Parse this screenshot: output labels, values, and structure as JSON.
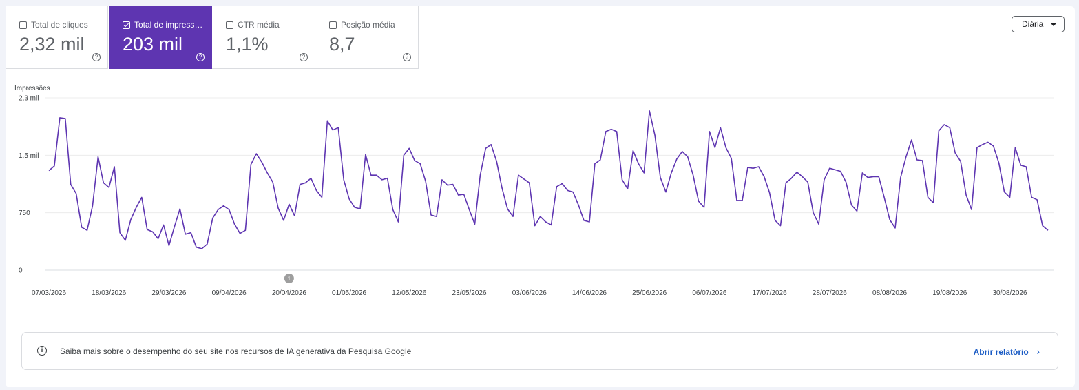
{
  "metrics": [
    {
      "label": "Total de cliques",
      "value": "2,32 mil",
      "active": false
    },
    {
      "label": "Total de impressões",
      "value": "203 mil",
      "active": true
    },
    {
      "label": "CTR média",
      "value": "1,1%",
      "active": false
    },
    {
      "label": "Posição média",
      "value": "8,7",
      "active": false
    }
  ],
  "dropdown": {
    "label": "Diária"
  },
  "banner": {
    "text": "Saiba mais sobre o desempenho do seu site nos recursos de IA generativa da Pesquisa Google",
    "link": "Abrir relatório"
  },
  "colors": {
    "accent": "#5e35b1",
    "line": "#5e35b1",
    "link": "#1a5bc4"
  },
  "chart_data": {
    "type": "line",
    "ylabel": "Impressões",
    "ylim": [
      0,
      2250
    ],
    "yticks": [
      {
        "value": 0,
        "label": "0"
      },
      {
        "value": 750,
        "label": "750"
      },
      {
        "value": 1500,
        "label": "1,5 mil"
      },
      {
        "value": 2250,
        "label": "2,3 mil"
      }
    ],
    "xticks": [
      "07/03/2026",
      "18/03/2026",
      "29/03/2026",
      "09/04/2026",
      "20/04/2026",
      "01/05/2026",
      "12/05/2026",
      "23/05/2026",
      "03/06/2026",
      "14/06/2026",
      "25/06/2026",
      "06/07/2026",
      "17/07/2026",
      "28/07/2026",
      "08/08/2026",
      "19/08/2026",
      "30/08/2026"
    ],
    "start_date": "07/03/2026",
    "annotation": {
      "label": "1",
      "date": "20/04/2026"
    },
    "grid": true,
    "series": [
      {
        "name": "Impressões",
        "values": [
          1300,
          1360,
          1990,
          1980,
          1120,
          1000,
          560,
          520,
          840,
          1480,
          1140,
          1080,
          1350,
          490,
          390,
          660,
          820,
          950,
          530,
          500,
          410,
          590,
          320,
          570,
          800,
          470,
          490,
          300,
          280,
          340,
          680,
          790,
          840,
          790,
          600,
          480,
          520,
          1380,
          1520,
          1410,
          1270,
          1150,
          810,
          650,
          860,
          710,
          1120,
          1140,
          1200,
          1040,
          950,
          1950,
          1830,
          1860,
          1180,
          930,
          820,
          800,
          1510,
          1240,
          1240,
          1180,
          1200,
          790,
          630,
          1500,
          1590,
          1430,
          1390,
          1160,
          720,
          700,
          1180,
          1110,
          1120,
          980,
          990,
          790,
          600,
          1240,
          1590,
          1640,
          1420,
          1070,
          800,
          700,
          1240,
          1190,
          1140,
          580,
          700,
          630,
          590,
          1090,
          1130,
          1040,
          1020,
          850,
          650,
          630,
          1390,
          1440,
          1810,
          1840,
          1810,
          1180,
          1060,
          1560,
          1390,
          1270,
          2080,
          1760,
          1210,
          1020,
          1270,
          1450,
          1550,
          1480,
          1240,
          900,
          820,
          1810,
          1600,
          1860,
          1600,
          1460,
          910,
          910,
          1340,
          1330,
          1350,
          1220,
          1010,
          650,
          580,
          1140,
          1200,
          1280,
          1220,
          1150,
          750,
          600,
          1180,
          1330,
          1310,
          1290,
          1150,
          850,
          770,
          1270,
          1210,
          1220,
          1220,
          950,
          660,
          550,
          1210,
          1480,
          1700,
          1440,
          1430,
          950,
          880,
          1820,
          1900,
          1860,
          1530,
          1420,
          980,
          790,
          1600,
          1640,
          1670,
          1620,
          1400,
          1020,
          950,
          1600,
          1370,
          1350,
          950,
          920,
          580,
          520
        ]
      }
    ]
  }
}
